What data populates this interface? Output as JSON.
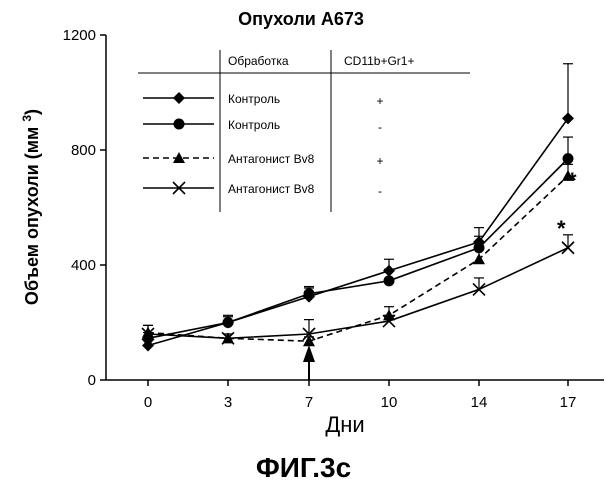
{
  "chart_data": {
    "type": "line",
    "title": "Опухоли А673",
    "xlabel": "Дни",
    "ylabel": "Объем опухоли (мм3)",
    "x": [
      0,
      3,
      7,
      10,
      14,
      17
    ],
    "ylim": [
      0,
      1200
    ],
    "yticks": [
      0,
      400,
      800,
      1200
    ],
    "series": [
      {
        "name": "Контроль",
        "cd11b_gr1": "+",
        "marker": "diamond",
        "dash": false,
        "values": [
          120,
          200,
          290,
          380,
          480,
          910
        ],
        "errors": [
          20,
          20,
          30,
          40,
          50,
          190
        ]
      },
      {
        "name": "Контроль",
        "cd11b_gr1": "-",
        "marker": "circle",
        "dash": false,
        "values": [
          145,
          200,
          300,
          345,
          460,
          770
        ],
        "errors": [
          20,
          25,
          25,
          40,
          40,
          75
        ]
      },
      {
        "name": "Антагонист Bv8",
        "cd11b_gr1": "+",
        "marker": "triangle",
        "dash": true,
        "values": [
          165,
          145,
          135,
          225,
          420,
          710
        ],
        "errors": [
          25,
          15,
          15,
          30,
          40,
          40
        ]
      },
      {
        "name": "Антагонист Bv8",
        "cd11b_gr1": "-",
        "marker": "x",
        "dash": false,
        "values": [
          160,
          145,
          160,
          205,
          315,
          460
        ],
        "errors": [
          30,
          15,
          50,
          20,
          40,
          45
        ]
      }
    ],
    "legend": {
      "header_treatment": "Обработка",
      "header_cells": "CD11b+Gr1+",
      "placement": "top-left"
    },
    "annotations": [
      "*",
      "*"
    ],
    "arrow_at_x": 7
  },
  "figure_label": "ФИГ.3с"
}
